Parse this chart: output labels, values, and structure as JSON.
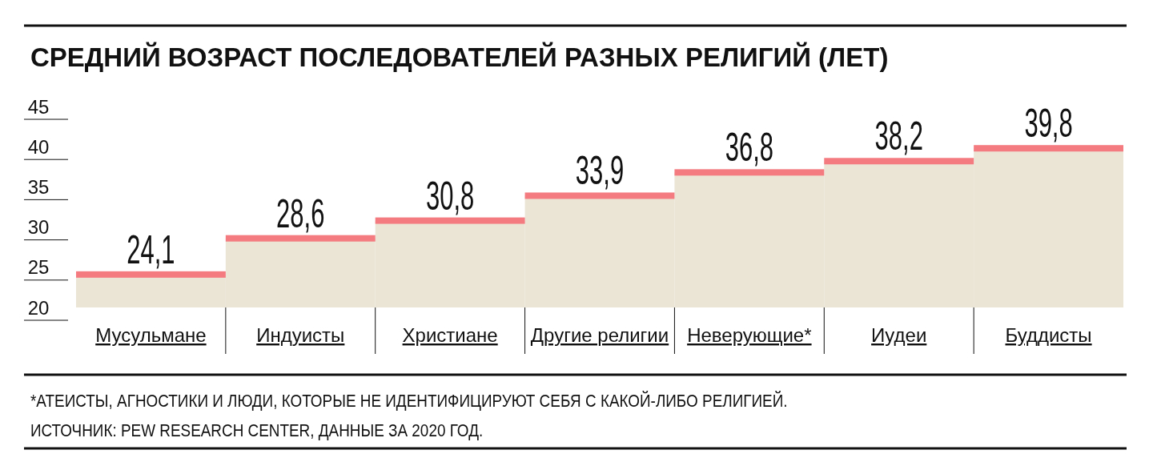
{
  "chart_data": {
    "type": "bar",
    "title": "СРЕДНИЙ ВОЗРАСТ ПОСЛЕДОВАТЕЛЕЙ РАЗНЫХ РЕЛИГИЙ (ЛЕТ)",
    "categories": [
      "Мусульмане",
      "Индуисты",
      "Христиане",
      "Другие религии",
      "Неверующие*",
      "Иудеи",
      "Буддисты"
    ],
    "values": [
      24.1,
      28.6,
      30.8,
      33.9,
      36.8,
      38.2,
      39.8
    ],
    "color": "#ebe5d6",
    "ylim": [
      20,
      45
    ],
    "yticks": [
      20,
      25,
      30,
      35,
      40,
      45
    ],
    "value_labels": [
      "24,1",
      "28,6",
      "30,8",
      "33,9",
      "36,8",
      "38,2",
      "39,8"
    ],
    "grid": false,
    "annotations": [
      "*АТЕИСТЫ, АГНОСТИКИ И ЛЮДИ, КОТОРЫЕ НЕ ИДЕНТИФИЦИРУЮТ СЕБЯ С КАКОЙ-ЛИБО РЕЛИГИЕЙ.",
      "ИСТОЧНИК: PEW RESEARCH CENTER, ДАННЫЕ ЗА 2020 ГОД."
    ]
  }
}
